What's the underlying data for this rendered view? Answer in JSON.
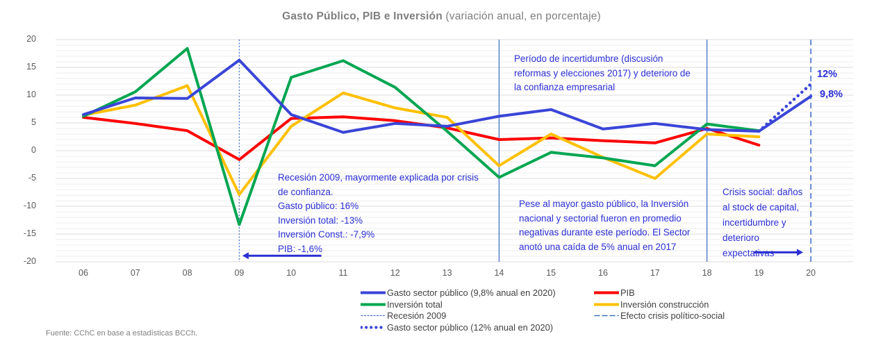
{
  "title": {
    "main": "Gasto Público, PIB e Inversión",
    "subtitle": " (variación anual, en porcentaje)"
  },
  "footer": {
    "source": "Fuente: CChC en base a estadísticas BCCh."
  },
  "colors": {
    "blue_line": "#3A45D7",
    "red_line": "#FF0000",
    "green_line": "#00A651",
    "yellow_line": "#FFC000",
    "note_blue": "#2B2FD4",
    "vline_blue": "#4472C4",
    "grid_minor": "#EDEDED",
    "grid_major": "#DBDBDB",
    "axis_text": "#595959",
    "title_gray": "#7F7F7F"
  },
  "chart_data": {
    "type": "line",
    "title": "Gasto Público, PIB e Inversión (variación anual, en porcentaje)",
    "xlabel": "",
    "ylabel": "",
    "ylim": [
      -20,
      20
    ],
    "yticks": [
      20,
      15,
      10,
      5,
      0,
      -5,
      -10,
      -15,
      -20
    ],
    "grid": "minor horizontal every 1, major every 5",
    "legend_position": "bottom",
    "categories": [
      "06",
      "07",
      "08",
      "09",
      "10",
      "11",
      "12",
      "13",
      "14",
      "15",
      "16",
      "17",
      "18",
      "19",
      "20"
    ],
    "series": [
      {
        "name": "PIB",
        "color_key": "red_line",
        "style": "solid",
        "values": [
          6.0,
          4.9,
          3.6,
          -1.6,
          5.8,
          6.1,
          5.4,
          4.1,
          2.0,
          2.3,
          1.8,
          1.4,
          4.0,
          1.0,
          null
        ]
      },
      {
        "name": "Inversión construcción",
        "color_key": "yellow_line",
        "style": "solid",
        "values": [
          6.4,
          8.2,
          11.7,
          -7.9,
          4.4,
          10.4,
          7.7,
          6.0,
          -2.7,
          3.0,
          -1.2,
          -5.0,
          3.0,
          2.5,
          null
        ]
      },
      {
        "name": "Inversión total",
        "color_key": "green_line",
        "style": "solid",
        "values": [
          6.2,
          10.6,
          18.4,
          -13.3,
          13.2,
          16.2,
          11.4,
          3.5,
          -4.8,
          -0.3,
          -1.3,
          -2.7,
          4.8,
          3.6,
          null
        ]
      },
      {
        "name": "Gasto sector público (9,8% anual en 2020)",
        "color_key": "blue_line",
        "style": "solid",
        "values": [
          6.5,
          9.5,
          9.4,
          16.3,
          6.5,
          3.3,
          4.9,
          4.4,
          6.2,
          7.4,
          3.9,
          4.9,
          3.8,
          3.5,
          9.8
        ]
      },
      {
        "name": "Gasto sector público (12% anual en 2020)",
        "color_key": "blue_line",
        "style": "dotted",
        "values": [
          null,
          null,
          null,
          null,
          null,
          null,
          null,
          null,
          null,
          null,
          null,
          null,
          null,
          3.5,
          12.0
        ]
      }
    ],
    "vlines": [
      {
        "x": "09",
        "style": "dash-small",
        "label": "Recesión 2009"
      },
      {
        "x": "14",
        "style": "solid",
        "label": ""
      },
      {
        "x": "18",
        "style": "solid",
        "label": ""
      },
      {
        "x": "20",
        "style": "dash-long",
        "label": "Efecto crisis político-social"
      }
    ],
    "arrows": [
      {
        "dir": "left",
        "x1": 4.58,
        "x2": 3.06,
        "y": -18.9
      },
      {
        "dir": "right",
        "x1": 12.9,
        "x2": 13.85,
        "y": -18.3
      }
    ],
    "value_labels": [
      {
        "text": "12%",
        "x": "20",
        "y": 12.0
      },
      {
        "text": "9,8%",
        "x": "20",
        "y": 9.8
      }
    ],
    "annotations": {
      "recesion": {
        "lines": [
          "Recesión 2009, mayormente explicada por crisis",
          "de confianza.",
          "Gasto público: 16%",
          "Inversión total: -13%",
          "Inversión Const.: -7,9%",
          "PIB: -1,6%"
        ]
      },
      "periodo": {
        "lines": [
          "Período de incertidumbre (discusión",
          "reformas y elecciones 2017) y deterioro de",
          "la confianza empresarial"
        ]
      },
      "pese": {
        "lines": [
          "Pese al mayor gasto público, la Inversión",
          "nacional y sectorial fueron en promedio",
          "negativas durante este período. El Sector",
          "anotó una caída de 5% anual en 2017"
        ]
      },
      "crisis": {
        "lines": [
          "Crisis social: daños",
          "al stock de capital,",
          "incertidumbre y",
          "deterioro",
          "expectativas"
        ]
      }
    }
  },
  "legend": {
    "left": [
      {
        "label": "Gasto sector público (9,8% anual en 2020)",
        "marker": "blue-solid"
      },
      {
        "label": "Inversión total",
        "marker": "green-solid"
      },
      {
        "label": "Recesión 2009",
        "marker": "blue-dash-small"
      },
      {
        "label": "Gasto sector público (12% anual en 2020)",
        "marker": "blue-dotted"
      }
    ],
    "right": [
      {
        "label": "PIB",
        "marker": "red-solid"
      },
      {
        "label": "Inversión construcción",
        "marker": "yellow-solid"
      },
      {
        "label": "Efecto crisis político-social",
        "marker": "blue-dash-long"
      }
    ]
  }
}
